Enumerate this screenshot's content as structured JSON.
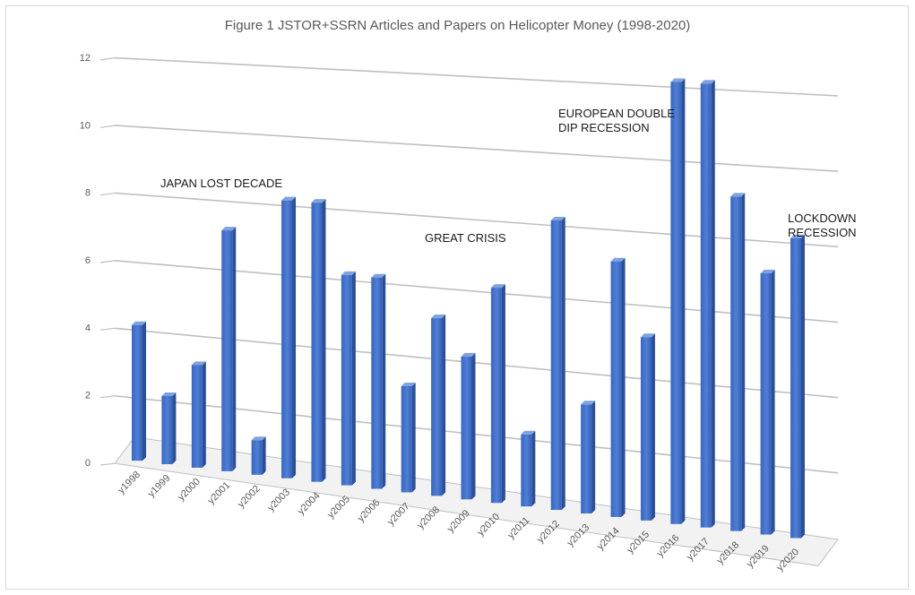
{
  "chart_data": {
    "type": "bar",
    "title": "Figure 1 JSTOR+SSRN Articles and Papers on Helicopter Money (1998-2020)",
    "categories": [
      "y1998",
      "y1999",
      "y2000",
      "y2001",
      "y2002",
      "y2003",
      "y2004",
      "y2005",
      "y2006",
      "y2007",
      "y2008",
      "y2009",
      "y2010",
      "y2011",
      "y2012",
      "y2013",
      "y2014",
      "y2015",
      "y2016",
      "y2017",
      "y2018",
      "y2019",
      "y2020"
    ],
    "series": [
      {
        "values": [
          4,
          2,
          3,
          7,
          1,
          8,
          8,
          6,
          6,
          3,
          5,
          4,
          6,
          2,
          8,
          3,
          7,
          5,
          12,
          12,
          9,
          7,
          8
        ]
      }
    ],
    "ylim": [
      0,
      12
    ],
    "yticks": [
      0,
      2,
      4,
      6,
      8,
      10,
      12
    ],
    "grid": true,
    "bar_color": "#4472c4",
    "annotations": [
      {
        "lines": [
          "JAPAN LOST DECADE"
        ],
        "anchor": "y2003"
      },
      {
        "lines": [
          "GREAT CRISIS"
        ],
        "anchor": "y2011"
      },
      {
        "lines": [
          "EUROPEAN DOUBLE",
          "DIP RECESSION"
        ],
        "anchor": "y2016"
      },
      {
        "lines": [
          "LOCKDOWN",
          "RECESSION"
        ],
        "anchor": "y2020"
      }
    ]
  }
}
